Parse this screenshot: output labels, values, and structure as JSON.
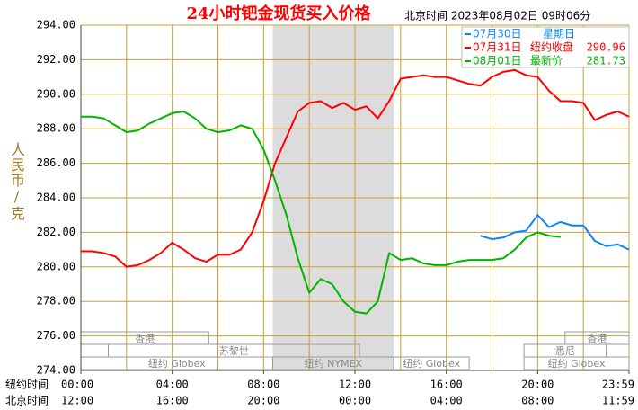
{
  "chart_data": {
    "type": "line",
    "title": "24小时钯金现货买入价格",
    "subtitle": "北京时间  2023年08月02日 09时06分",
    "ylabel": "人民币/克",
    "ylim": [
      274,
      294
    ],
    "yticks": [
      {
        "value": 274,
        "label": "274.00"
      },
      {
        "value": 276,
        "label": "276.00"
      },
      {
        "value": 278,
        "label": "278.00"
      },
      {
        "value": 280,
        "label": "280.00"
      },
      {
        "value": 282,
        "label": "282.00"
      },
      {
        "value": 284,
        "label": "284.00"
      },
      {
        "value": 286,
        "label": "286.00"
      },
      {
        "value": 288,
        "label": "288.00"
      },
      {
        "value": 290,
        "label": "290.00"
      },
      {
        "value": 292,
        "label": "292.00"
      },
      {
        "value": 294,
        "label": "294.00"
      }
    ],
    "xlim": [
      0,
      24
    ],
    "xticks": [
      {
        "value": 0,
        "label": "00:00"
      },
      {
        "value": 4,
        "label": "04:00"
      },
      {
        "value": 8,
        "label": "08:00"
      },
      {
        "value": 12,
        "label": "12:00"
      },
      {
        "value": 16,
        "label": "16:00"
      },
      {
        "value": 20,
        "label": "20:00"
      },
      {
        "value": 24,
        "label": "23:59"
      }
    ],
    "xticks_beijing": [
      "12:00",
      "16:00",
      "20:00",
      "00:00",
      "04:00",
      "08:00",
      "11:59"
    ],
    "x_row_labels": [
      "纽约时间",
      "北京时间"
    ],
    "xgrid": [
      0,
      2,
      4,
      6,
      8,
      10,
      12,
      14,
      16,
      18,
      20,
      22,
      24
    ],
    "grid": true,
    "x": [
      0,
      0.5,
      1,
      1.5,
      2,
      2.5,
      3,
      3.5,
      4,
      4.5,
      5,
      5.5,
      6,
      6.5,
      7,
      7.5,
      8,
      8.5,
      9,
      9.5,
      10,
      10.5,
      11,
      11.5,
      12,
      12.5,
      13,
      13.5,
      14,
      14.5,
      15,
      15.5,
      16,
      16.5,
      17,
      17.5,
      18,
      18.5,
      19,
      19.5,
      20,
      20.5,
      21,
      21.5,
      22,
      22.5,
      23,
      23.5,
      24
    ],
    "series": [
      {
        "name": "07月30日",
        "note": "星期日",
        "color": "#0a84ff",
        "values": [
          null,
          null,
          null,
          null,
          null,
          null,
          null,
          null,
          null,
          null,
          null,
          null,
          null,
          null,
          null,
          null,
          null,
          null,
          null,
          null,
          null,
          null,
          null,
          null,
          null,
          null,
          null,
          null,
          null,
          null,
          null,
          null,
          null,
          null,
          null,
          281.8,
          281.6,
          281.7,
          282.0,
          282.1,
          283.0,
          282.3,
          282.6,
          282.4,
          282.4,
          281.5,
          281.2,
          281.3,
          281.0
        ]
      },
      {
        "name": "07月31日",
        "note": "纽约收盘",
        "price": 290.96,
        "color": "#ff0000",
        "values": [
          280.9,
          280.9,
          280.8,
          280.6,
          280.0,
          280.1,
          280.4,
          280.8,
          281.4,
          281.0,
          280.5,
          280.3,
          280.7,
          280.7,
          281.0,
          282.0,
          283.8,
          286.0,
          287.5,
          289.0,
          289.5,
          289.6,
          289.2,
          289.5,
          289.1,
          289.3,
          288.6,
          289.6,
          290.9,
          291.0,
          291.1,
          291.0,
          291.0,
          290.8,
          290.6,
          290.5,
          291.0,
          291.3,
          291.4,
          291.1,
          291.0,
          290.2,
          289.6,
          289.6,
          289.5,
          288.5,
          288.8,
          289.0,
          288.7
        ]
      },
      {
        "name": "08月01日",
        "note": "最新价",
        "price": 281.73,
        "color": "#00b400",
        "values": [
          288.7,
          288.7,
          288.6,
          288.2,
          287.8,
          287.9,
          288.3,
          288.6,
          288.9,
          289.0,
          288.6,
          288.0,
          287.8,
          287.9,
          288.2,
          288.0,
          286.8,
          285.0,
          283.0,
          280.5,
          278.5,
          279.3,
          279.0,
          278.0,
          277.4,
          277.3,
          278.0,
          280.8,
          280.4,
          280.5,
          280.2,
          280.1,
          280.1,
          280.3,
          280.4,
          280.4,
          280.4,
          280.5,
          281.0,
          281.7,
          282.0,
          281.8,
          281.73,
          null,
          null,
          null,
          null,
          null,
          null
        ]
      }
    ],
    "sessions": [
      {
        "name": "香港",
        "row": 0,
        "start": 0,
        "end": 5.6
      },
      {
        "name": "苏黎世",
        "row": 1,
        "start": 1.2,
        "end": 12.2
      },
      {
        "name": "纽约 Globex",
        "row": 2,
        "start": 0,
        "end": 8.4
      },
      {
        "name": "纽约 NYMEX",
        "row": 2,
        "start": 8.4,
        "end": 13.7,
        "highlight": true
      },
      {
        "name": "纽约 Globex",
        "row": 2,
        "start": 13.7,
        "end": 17
      },
      {
        "name": "悉尼",
        "row": 1,
        "start": 19.4,
        "end": 23
      },
      {
        "name": "香港",
        "row": 0,
        "start": 21.2,
        "end": 24
      },
      {
        "name": "纽约 Globex",
        "row": 2,
        "start": 19.4,
        "end": 24
      }
    ]
  }
}
